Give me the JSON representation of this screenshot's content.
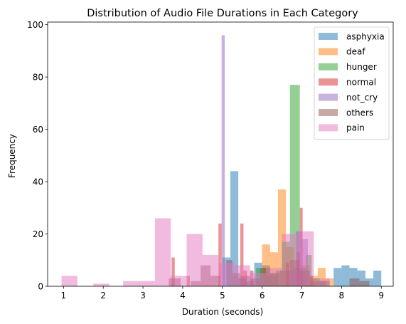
{
  "chart_data": {
    "type": "histogram",
    "title": "Distribution of Audio File Durations in Each Category",
    "xlabel": "Duration (seconds)",
    "ylabel": "Frequency",
    "xlim": [
      0.6,
      9.3
    ],
    "ylim": [
      0,
      101
    ],
    "xticks": [
      1,
      2,
      3,
      4,
      5,
      6,
      7,
      8,
      9
    ],
    "yticks": [
      0,
      20,
      40,
      60,
      80,
      100
    ],
    "legend_position": "upper-right",
    "grid": false,
    "bar_alpha": 0.5,
    "series": [
      {
        "name": "asphyxia",
        "color": "#1f77b4",
        "bins": [
          {
            "x0": 5.0,
            "x1": 5.2,
            "count": 11
          },
          {
            "x0": 5.2,
            "x1": 5.4,
            "count": 44
          },
          {
            "x0": 5.4,
            "x1": 5.6,
            "count": 3
          },
          {
            "x0": 5.6,
            "x1": 5.8,
            "count": 2
          },
          {
            "x0": 5.8,
            "x1": 6.0,
            "count": 9
          },
          {
            "x0": 6.0,
            "x1": 6.2,
            "count": 8
          },
          {
            "x0": 6.2,
            "x1": 6.4,
            "count": 5
          },
          {
            "x0": 7.8,
            "x1": 8.0,
            "count": 7
          },
          {
            "x0": 8.0,
            "x1": 8.2,
            "count": 8
          },
          {
            "x0": 8.2,
            "x1": 8.4,
            "count": 7
          },
          {
            "x0": 8.4,
            "x1": 8.6,
            "count": 6
          },
          {
            "x0": 8.6,
            "x1": 8.8,
            "count": 3
          },
          {
            "x0": 8.8,
            "x1": 9.0,
            "count": 6
          }
        ]
      },
      {
        "name": "deaf",
        "color": "#ff7f0e",
        "bins": [
          {
            "x0": 6.0,
            "x1": 6.2,
            "count": 16
          },
          {
            "x0": 6.2,
            "x1": 6.4,
            "count": 13
          },
          {
            "x0": 6.4,
            "x1": 6.6,
            "count": 37
          },
          {
            "x0": 6.6,
            "x1": 6.8,
            "count": 15
          },
          {
            "x0": 6.8,
            "x1": 7.0,
            "count": 7
          },
          {
            "x0": 7.0,
            "x1": 7.2,
            "count": 8
          },
          {
            "x0": 7.2,
            "x1": 7.4,
            "count": 4
          },
          {
            "x0": 7.4,
            "x1": 7.6,
            "count": 7
          },
          {
            "x0": 7.6,
            "x1": 7.8,
            "count": 3
          }
        ]
      },
      {
        "name": "hunger",
        "color": "#2ca02c",
        "bins": [
          {
            "x0": 5.85,
            "x1": 6.1,
            "count": 7
          },
          {
            "x0": 6.1,
            "x1": 6.35,
            "count": 4
          },
          {
            "x0": 6.35,
            "x1": 6.5,
            "count": 6
          },
          {
            "x0": 6.5,
            "x1": 6.7,
            "count": 17
          },
          {
            "x0": 6.7,
            "x1": 6.95,
            "count": 77
          },
          {
            "x0": 6.95,
            "x1": 7.1,
            "count": 7
          },
          {
            "x0": 7.1,
            "x1": 7.25,
            "count": 12
          },
          {
            "x0": 7.25,
            "x1": 7.45,
            "count": 3
          },
          {
            "x0": 7.45,
            "x1": 7.6,
            "count": 2
          }
        ]
      },
      {
        "name": "normal",
        "color": "#d62728",
        "bins": [
          {
            "x0": 3.72,
            "x1": 3.8,
            "count": 11
          },
          {
            "x0": 4.1,
            "x1": 4.18,
            "count": 4
          },
          {
            "x0": 4.9,
            "x1": 4.98,
            "count": 24
          },
          {
            "x0": 5.45,
            "x1": 5.53,
            "count": 24
          },
          {
            "x0": 5.53,
            "x1": 5.62,
            "count": 6
          },
          {
            "x0": 5.7,
            "x1": 5.78,
            "count": 6
          },
          {
            "x0": 6.6,
            "x1": 6.68,
            "count": 9
          },
          {
            "x0": 6.87,
            "x1": 6.95,
            "count": 13
          },
          {
            "x0": 6.95,
            "x1": 7.02,
            "count": 30
          },
          {
            "x0": 7.2,
            "x1": 7.28,
            "count": 4
          }
        ]
      },
      {
        "name": "not_cry",
        "color": "#9467bd",
        "bins": [
          {
            "x0": 4.98,
            "x1": 5.06,
            "count": 96
          },
          {
            "x0": 6.7,
            "x1": 6.85,
            "count": 6
          },
          {
            "x0": 6.85,
            "x1": 7.0,
            "count": 21
          },
          {
            "x0": 7.0,
            "x1": 7.15,
            "count": 18
          }
        ]
      },
      {
        "name": "others",
        "color": "#8c564b",
        "bins": [
          {
            "x0": 3.65,
            "x1": 3.95,
            "count": 3
          },
          {
            "x0": 4.2,
            "x1": 4.45,
            "count": 2
          },
          {
            "x0": 4.45,
            "x1": 4.7,
            "count": 8
          },
          {
            "x0": 4.7,
            "x1": 4.95,
            "count": 4
          },
          {
            "x0": 5.1,
            "x1": 5.25,
            "count": 10
          },
          {
            "x0": 5.25,
            "x1": 5.45,
            "count": 5
          },
          {
            "x0": 5.45,
            "x1": 5.7,
            "count": 4
          },
          {
            "x0": 5.7,
            "x1": 5.95,
            "count": 3
          },
          {
            "x0": 5.95,
            "x1": 6.2,
            "count": 7
          },
          {
            "x0": 6.2,
            "x1": 6.45,
            "count": 5
          },
          {
            "x0": 6.45,
            "x1": 6.7,
            "count": 6
          },
          {
            "x0": 6.7,
            "x1": 6.95,
            "count": 10
          },
          {
            "x0": 6.95,
            "x1": 7.2,
            "count": 6
          },
          {
            "x0": 7.2,
            "x1": 7.45,
            "count": 2
          },
          {
            "x0": 7.45,
            "x1": 7.7,
            "count": 2
          },
          {
            "x0": 8.2,
            "x1": 8.45,
            "count": 3
          },
          {
            "x0": 8.45,
            "x1": 8.7,
            "count": 2
          }
        ]
      },
      {
        "name": "pain",
        "color": "#e377c2",
        "bins": [
          {
            "x0": 0.95,
            "x1": 1.35,
            "count": 4
          },
          {
            "x0": 1.75,
            "x1": 2.15,
            "count": 1
          },
          {
            "x0": 2.5,
            "x1": 2.9,
            "count": 2
          },
          {
            "x0": 2.9,
            "x1": 3.3,
            "count": 2
          },
          {
            "x0": 3.3,
            "x1": 3.7,
            "count": 26
          },
          {
            "x0": 3.7,
            "x1": 4.1,
            "count": 4
          },
          {
            "x0": 4.1,
            "x1": 4.5,
            "count": 20
          },
          {
            "x0": 4.5,
            "x1": 4.9,
            "count": 12
          },
          {
            "x0": 4.9,
            "x1": 5.3,
            "count": 9
          },
          {
            "x0": 5.3,
            "x1": 5.7,
            "count": 8
          },
          {
            "x0": 5.7,
            "x1": 6.1,
            "count": 5
          },
          {
            "x0": 6.1,
            "x1": 6.5,
            "count": 7
          },
          {
            "x0": 6.5,
            "x1": 6.9,
            "count": 20
          },
          {
            "x0": 6.9,
            "x1": 7.3,
            "count": 21
          },
          {
            "x0": 7.3,
            "x1": 7.7,
            "count": 3
          }
        ]
      }
    ]
  }
}
